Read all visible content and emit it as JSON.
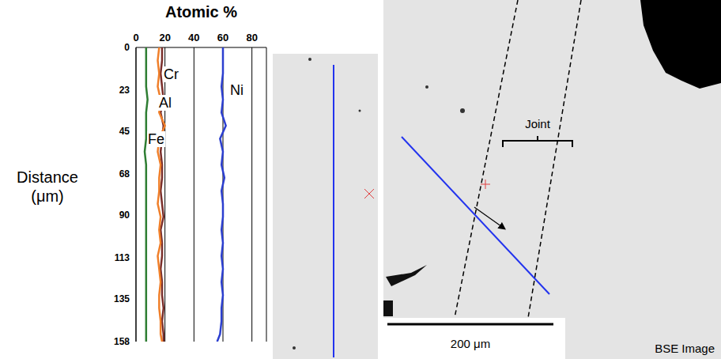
{
  "chart_data": {
    "type": "line",
    "x_label": "Atomic %",
    "y_label": "Distance (μm)",
    "xlim": [
      0,
      90
    ],
    "xticks": [
      0,
      20,
      40,
      60,
      80
    ],
    "ylim": [
      0,
      158
    ],
    "yticks": [
      0,
      23,
      45,
      68,
      90,
      113,
      135,
      158
    ],
    "grid": true,
    "y": [
      0,
      7,
      14,
      21,
      28,
      35,
      42,
      49,
      56,
      63,
      70,
      77,
      84,
      91,
      98,
      105,
      112,
      119,
      126,
      133,
      140,
      147,
      154,
      158
    ],
    "series": [
      {
        "name": "Ni",
        "color": "#2c3fd0",
        "values": [
          60,
          60,
          60,
          59,
          60,
          59,
          62,
          58,
          60,
          59,
          61,
          59,
          60,
          60,
          59,
          60,
          59,
          60,
          59,
          60,
          59,
          59,
          58,
          56
        ]
      },
      {
        "name": "Cr",
        "color": "#7a2e2a",
        "values": [
          18,
          18,
          17,
          18,
          19,
          17,
          19,
          18,
          17,
          18,
          18,
          17,
          18,
          19,
          17,
          18,
          18,
          17,
          18,
          18,
          19,
          18,
          19,
          19
        ]
      },
      {
        "name": "Al",
        "color": "#f07f2a",
        "values": [
          16,
          15,
          16,
          15,
          17,
          16,
          20,
          16,
          15,
          17,
          16,
          16,
          15,
          17,
          16,
          17,
          15,
          16,
          17,
          16,
          16,
          17,
          17,
          18
        ]
      },
      {
        "name": "Fe",
        "color": "#2e7d32",
        "values": [
          7,
          7,
          7,
          7,
          8,
          7,
          7,
          7,
          6,
          7,
          7,
          7,
          7,
          7,
          7,
          7,
          7,
          7,
          7,
          7,
          7,
          7,
          7,
          7
        ]
      }
    ]
  },
  "micrographs": {
    "joint_label": "Joint",
    "scale_bar": "200 μm",
    "image_label": "BSE Image"
  }
}
